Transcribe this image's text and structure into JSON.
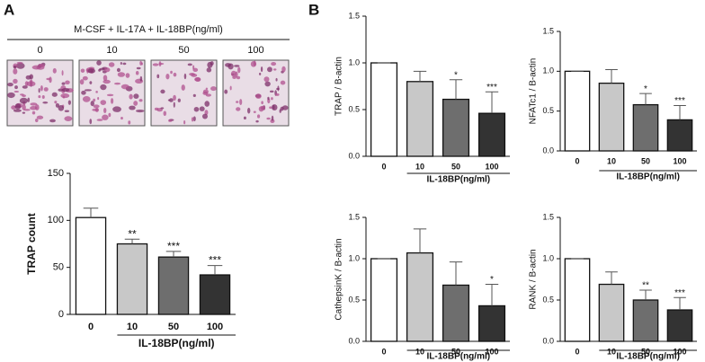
{
  "panel_labels": [
    "A",
    "B"
  ],
  "micrograph": {
    "header": "M-CSF + IL-17A + IL-18BP(ng/ml)",
    "doses": [
      "0",
      "10",
      "50",
      "100"
    ]
  },
  "chart_data": [
    {
      "type": "bar",
      "ylabel": "TRAP count",
      "xlabel": "IL-18BP(ng/ml)",
      "categories": [
        "0",
        "10",
        "50",
        "100"
      ],
      "values": [
        103,
        75,
        61,
        42
      ],
      "errors": [
        10,
        5,
        6,
        10
      ],
      "significance": [
        null,
        "**",
        "***",
        "***"
      ],
      "colors": [
        "#ffffff",
        "#c8c8c8",
        "#6e6e6e",
        "#333333"
      ],
      "ylim": [
        0,
        150
      ],
      "yticks": [
        0,
        50,
        100,
        150
      ]
    },
    {
      "type": "bar",
      "ylabel": "TRAP / B-actin",
      "xlabel": "IL-18BP(ng/ml)",
      "categories": [
        "0",
        "10",
        "50",
        "100"
      ],
      "values": [
        1.0,
        0.8,
        0.61,
        0.46
      ],
      "errors": [
        0,
        0.11,
        0.21,
        0.23
      ],
      "significance": [
        null,
        null,
        "*",
        "***"
      ],
      "colors": [
        "#ffffff",
        "#c8c8c8",
        "#6e6e6e",
        "#333333"
      ],
      "ylim": [
        0,
        1.5
      ],
      "yticks": [
        {
          "value": 0,
          "label": "0.0"
        },
        0.5,
        {
          "value": 1,
          "label": "1.0"
        },
        1.5
      ]
    },
    {
      "type": "bar",
      "ylabel": "NFATc1 / B-actin",
      "xlabel": "IL-18BP(ng/ml)",
      "categories": [
        "0",
        "10",
        "50",
        "100"
      ],
      "values": [
        1.0,
        0.85,
        0.58,
        0.39
      ],
      "errors": [
        0,
        0.17,
        0.14,
        0.18
      ],
      "significance": [
        null,
        null,
        "*",
        "***"
      ],
      "colors": [
        "#ffffff",
        "#c8c8c8",
        "#6e6e6e",
        "#333333"
      ],
      "ylim": [
        0,
        1.5
      ],
      "yticks": [
        {
          "value": 0,
          "label": "0.0"
        },
        0.5,
        {
          "value": 1,
          "label": "1.0"
        },
        1.5
      ]
    },
    {
      "type": "bar",
      "ylabel": "CathepsinK / B-actin",
      "xlabel": "IL-18BP(ng/ml)",
      "categories": [
        "0",
        "10",
        "50",
        "100"
      ],
      "values": [
        1.0,
        1.07,
        0.68,
        0.43
      ],
      "errors": [
        0,
        0.29,
        0.28,
        0.26
      ],
      "significance": [
        null,
        null,
        null,
        "*"
      ],
      "colors": [
        "#ffffff",
        "#c8c8c8",
        "#6e6e6e",
        "#333333"
      ],
      "ylim": [
        0,
        1.5
      ],
      "yticks": [
        {
          "value": 0,
          "label": "0.0"
        },
        0.5,
        {
          "value": 1,
          "label": "1.0"
        },
        1.5
      ]
    },
    {
      "type": "bar",
      "ylabel": "RANK / B-actin",
      "xlabel": "IL-18BP(ng/ml)",
      "categories": [
        "0",
        "10",
        "50",
        "100"
      ],
      "values": [
        1.0,
        0.69,
        0.5,
        0.38
      ],
      "errors": [
        0,
        0.15,
        0.12,
        0.15
      ],
      "significance": [
        null,
        null,
        "**",
        "***"
      ],
      "colors": [
        "#ffffff",
        "#c8c8c8",
        "#6e6e6e",
        "#333333"
      ],
      "ylim": [
        0,
        1.5
      ],
      "yticks": [
        {
          "value": 0,
          "label": "0.0"
        },
        0.5,
        {
          "value": 1,
          "label": "1.0"
        },
        1.5
      ]
    }
  ]
}
